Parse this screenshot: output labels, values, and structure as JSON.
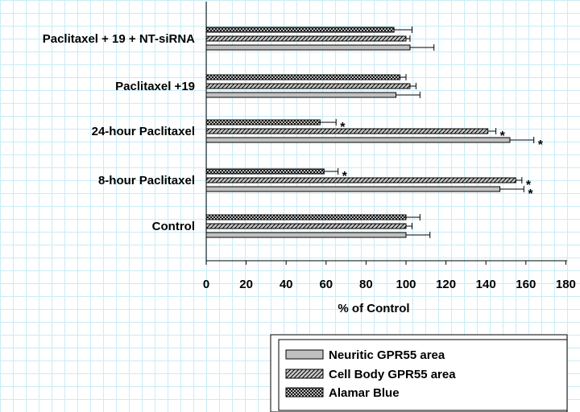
{
  "chart_data": {
    "type": "bar",
    "orientation": "horizontal",
    "categories": [
      "Control",
      "8-hour Paclitaxel",
      "24-hour Paclitaxel",
      "Paclitaxel +19",
      "Paclitaxel + 19 + NT-siRNA"
    ],
    "series": [
      {
        "name": "Neuritic GPR55 area",
        "values": [
          100,
          147,
          152,
          95,
          102
        ],
        "errors": [
          12,
          12,
          12,
          12,
          12
        ],
        "significant": [
          false,
          true,
          true,
          false,
          false
        ],
        "pattern": "solid"
      },
      {
        "name": "Cell Body GPR55 area",
        "values": [
          100,
          155,
          141,
          102,
          100
        ],
        "errors": [
          3,
          3,
          4,
          3,
          2
        ],
        "significant": [
          false,
          true,
          true,
          false,
          false
        ],
        "pattern": "hatch"
      },
      {
        "name": "Alamar Blue",
        "values": [
          100,
          59,
          57,
          97,
          94
        ],
        "errors": [
          7,
          7,
          8,
          3,
          9
        ],
        "significant": [
          false,
          true,
          true,
          false,
          false
        ],
        "pattern": "crosshatch"
      }
    ],
    "significance_marker": "*",
    "xlabel": "% of Control",
    "ylabel": "",
    "xlim": [
      0,
      180
    ],
    "xticks": [
      "0",
      "20",
      "40",
      "60",
      "80",
      "100",
      "120",
      "140",
      "160",
      "180"
    ],
    "grid": true,
    "legend_position": "bottom-right",
    "colors": {
      "bar_fill": "#c0c0c0",
      "bar_stroke": "#000000",
      "grid": "#c9ecf7"
    }
  }
}
